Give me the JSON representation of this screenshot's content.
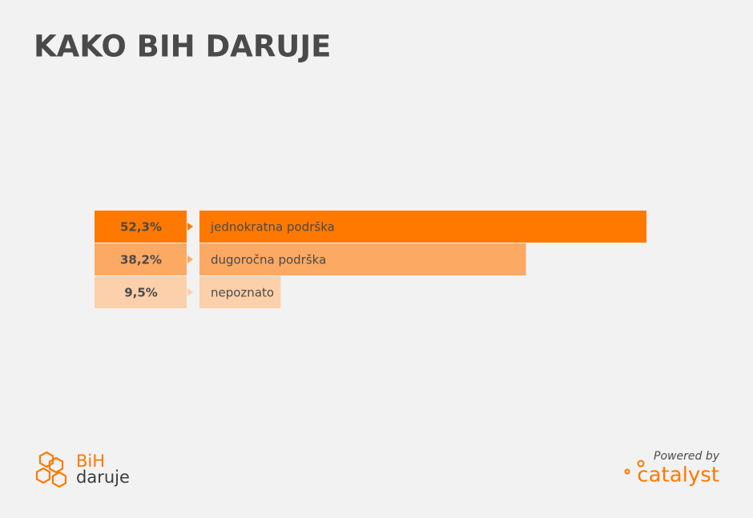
{
  "chart_data": {
    "type": "bar",
    "orientation": "horizontal",
    "title": "KAKO BIH DARUJE",
    "categories": [
      "jednokratna podrška",
      "dugoročna podrška",
      "nepoznato"
    ],
    "values": [
      52.3,
      38.2,
      9.5
    ],
    "value_labels": [
      "52,3%",
      "38,2%",
      "9,5%"
    ],
    "colors": [
      "#ff7900",
      "#fca964",
      "#fbd0aa"
    ]
  },
  "logo": {
    "top": "BiH",
    "bottom": "daruje"
  },
  "footer": {
    "powered_by": "Powered by",
    "partner": "catalyst"
  }
}
